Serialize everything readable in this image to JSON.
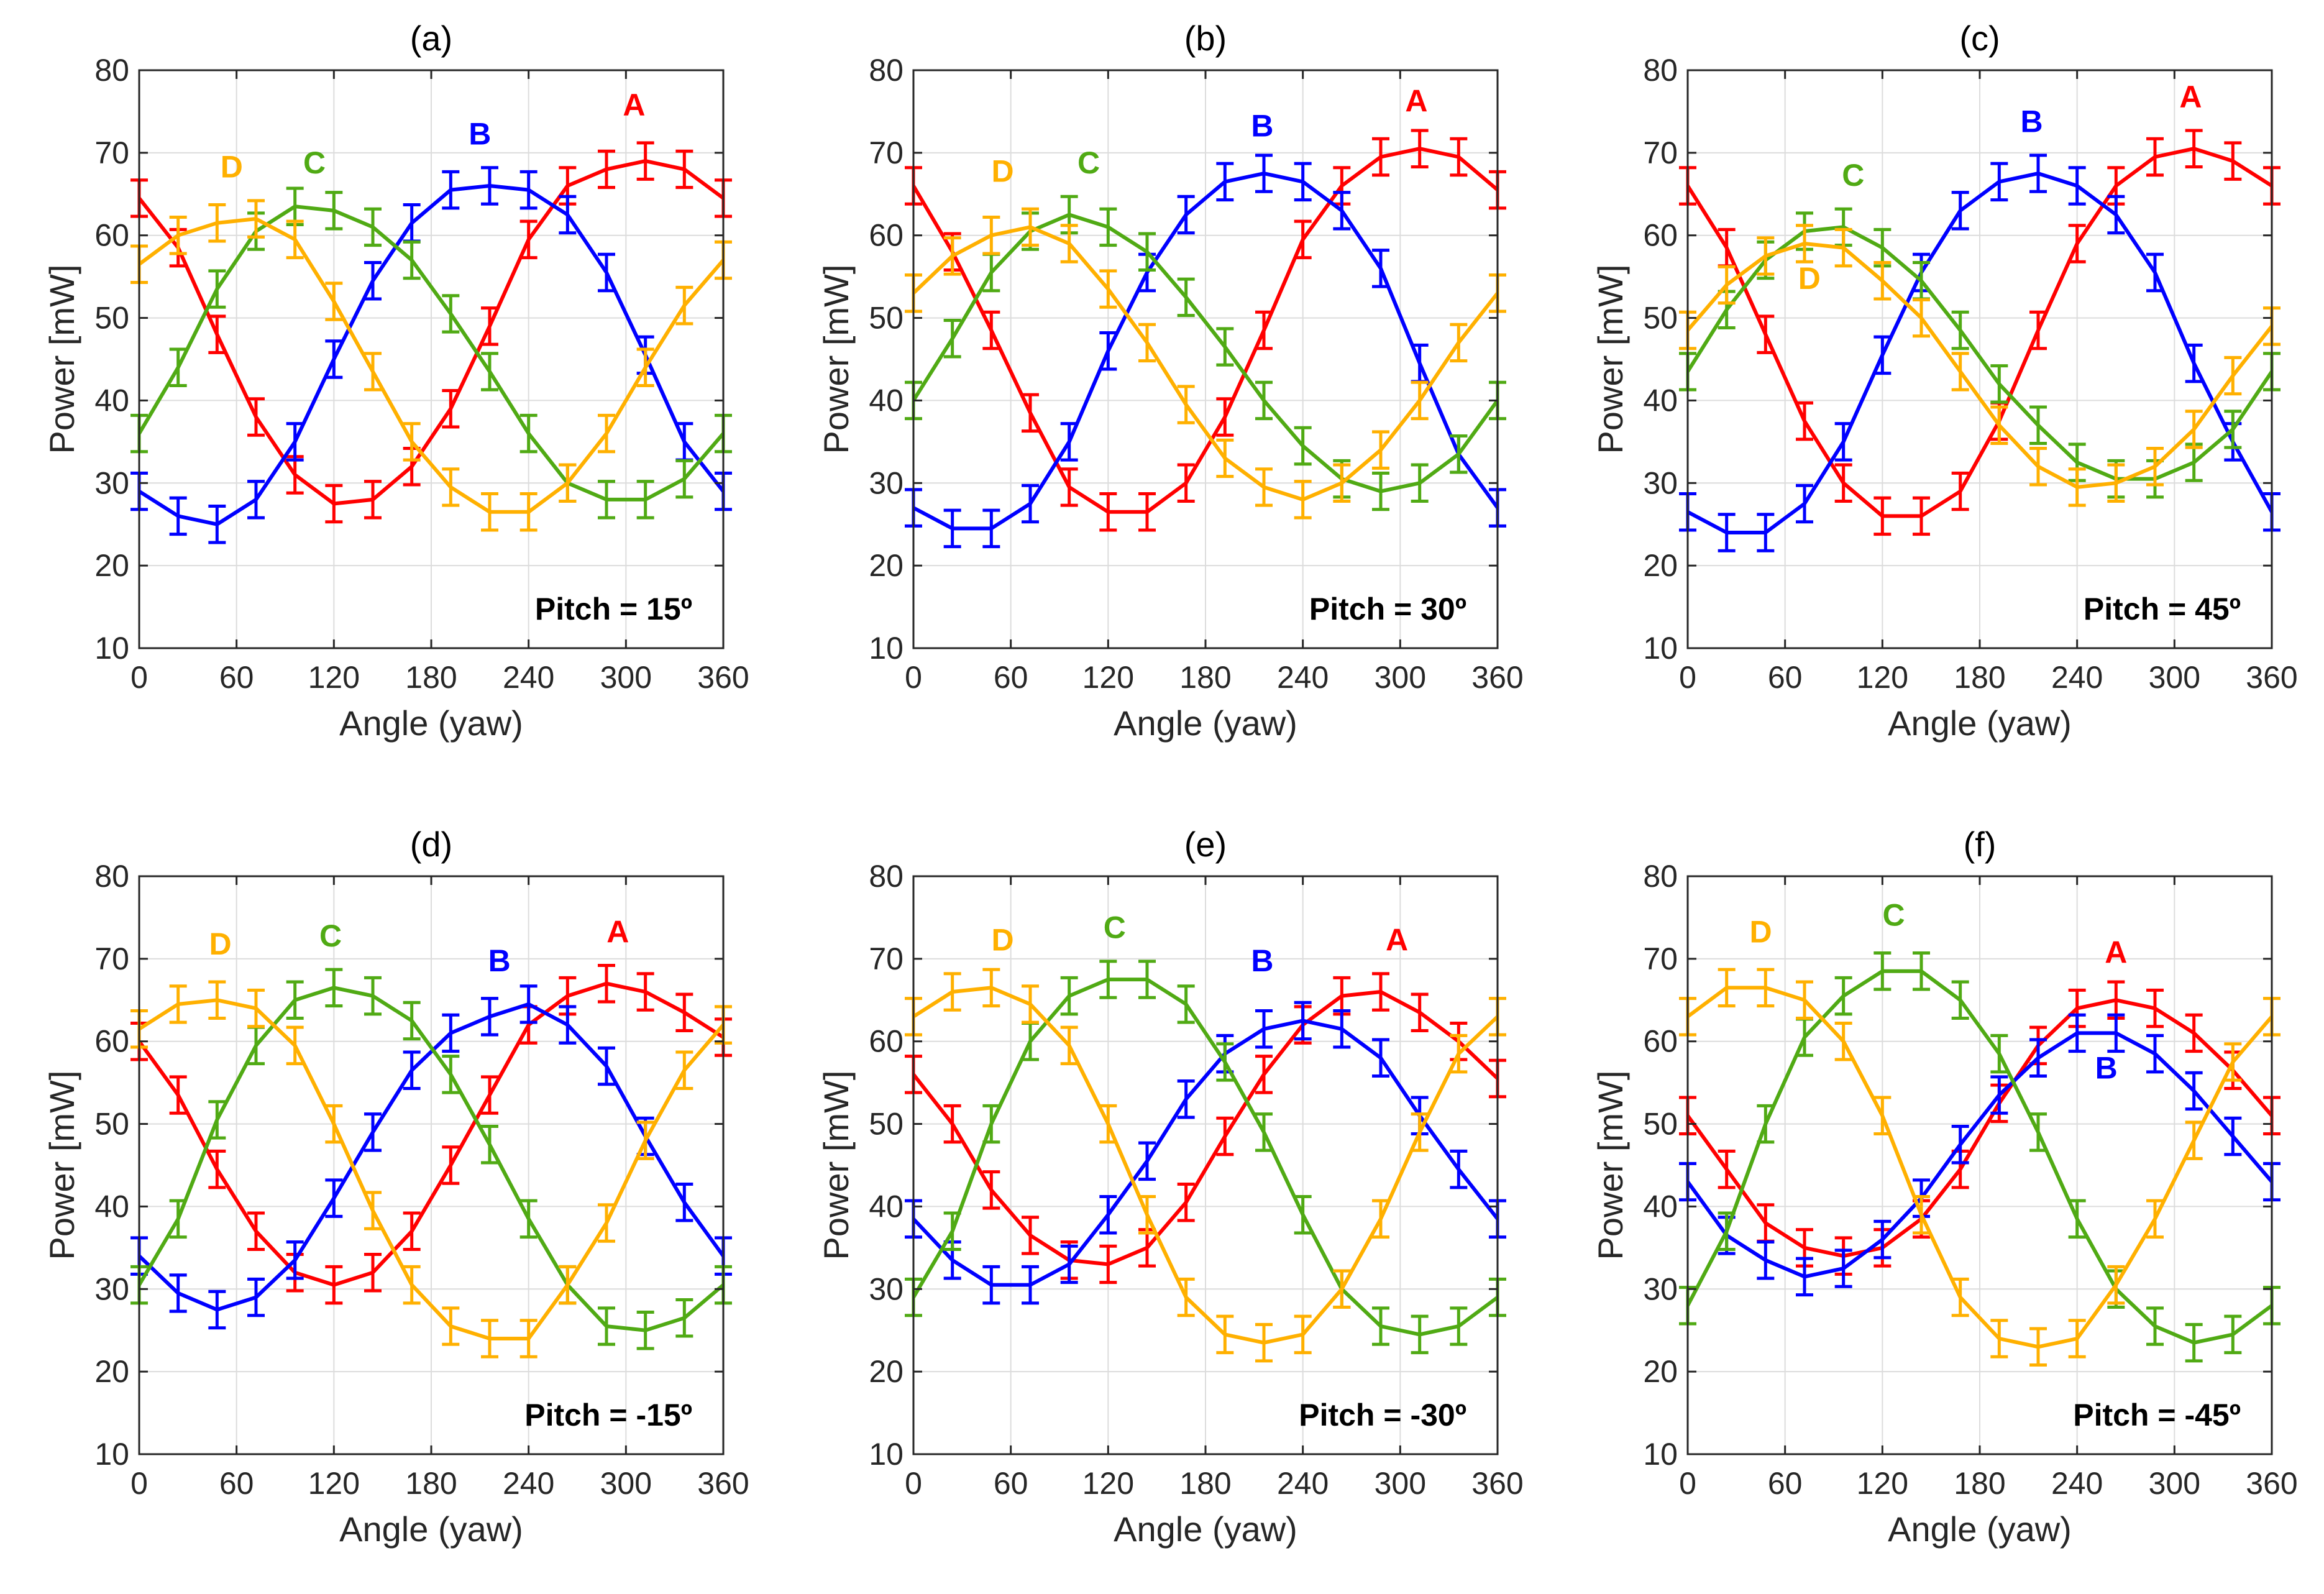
{
  "figure": {
    "background": "#ffffff"
  },
  "chart_data": [
    {
      "type": "line",
      "panel_label": "(a)",
      "annotation": "Pitch = 15º",
      "xlabel": "Angle (yaw)",
      "ylabel": "Power [mW]",
      "xlim": [
        0,
        360
      ],
      "ylim": [
        10,
        80
      ],
      "grid": true,
      "xticks": [
        "0",
        "60",
        "120",
        "180",
        "240",
        "300",
        "360"
      ],
      "yticks": [
        "10",
        "20",
        "30",
        "40",
        "50",
        "60",
        "70",
        "80"
      ],
      "x": [
        0,
        24,
        48,
        72,
        96,
        120,
        144,
        168,
        192,
        216,
        240,
        264,
        288,
        312,
        336,
        360
      ],
      "series": [
        {
          "name": "A",
          "color": "#ff0000",
          "label_at": [
            305,
            74.5
          ],
          "values": [
            64.5,
            58.5,
            48,
            38,
            31,
            27.5,
            28,
            32,
            39,
            49,
            59.5,
            66,
            68,
            69,
            68,
            64.5
          ]
        },
        {
          "name": "B",
          "color": "#0000ff",
          "label_at": [
            210,
            71
          ],
          "values": [
            29,
            26,
            25,
            28,
            35,
            45,
            54.5,
            61.5,
            65.5,
            66,
            65.5,
            62.5,
            55.5,
            45.5,
            35,
            29
          ]
        },
        {
          "name": "C",
          "color": "#50aa14",
          "label_at": [
            108,
            67.5
          ],
          "values": [
            36,
            44,
            53.5,
            60.5,
            63.5,
            63,
            61,
            57,
            50.5,
            43.5,
            36,
            30,
            28,
            28,
            30.5,
            36
          ]
        },
        {
          "name": "D",
          "color": "#ffb000",
          "label_at": [
            57,
            67
          ],
          "values": [
            56.5,
            60,
            61.5,
            62,
            59.5,
            52,
            43.5,
            35,
            29.5,
            26.5,
            26.5,
            30,
            36,
            44,
            51.5,
            57
          ]
        }
      ]
    },
    {
      "type": "line",
      "panel_label": "(b)",
      "annotation": "Pitch = 30º",
      "xlabel": "Angle (yaw)",
      "ylabel": "Power [mW]",
      "xlim": [
        0,
        360
      ],
      "ylim": [
        10,
        80
      ],
      "grid": true,
      "xticks": [
        "0",
        "60",
        "120",
        "180",
        "240",
        "300",
        "360"
      ],
      "yticks": [
        "10",
        "20",
        "30",
        "40",
        "50",
        "60",
        "70",
        "80"
      ],
      "x": [
        0,
        24,
        48,
        72,
        96,
        120,
        144,
        168,
        192,
        216,
        240,
        264,
        288,
        312,
        336,
        360
      ],
      "series": [
        {
          "name": "A",
          "color": "#ff0000",
          "label_at": [
            310,
            75
          ],
          "values": [
            66,
            58,
            48.5,
            38.5,
            29.5,
            26.5,
            26.5,
            30,
            38,
            48.5,
            59.5,
            66,
            69.5,
            70.5,
            69.5,
            65.5
          ]
        },
        {
          "name": "B",
          "color": "#0000ff",
          "label_at": [
            215,
            72
          ],
          "values": [
            27,
            24.5,
            24.5,
            27.5,
            35,
            46,
            55.5,
            62.5,
            66.5,
            67.5,
            66.5,
            63,
            56,
            44.5,
            33.5,
            27
          ]
        },
        {
          "name": "C",
          "color": "#50aa14",
          "label_at": [
            108,
            67.5
          ],
          "values": [
            40,
            47.5,
            55.5,
            60.5,
            62.5,
            61,
            58,
            52.5,
            46.5,
            40,
            34.5,
            30.5,
            29,
            30,
            33.5,
            40
          ]
        },
        {
          "name": "D",
          "color": "#ffb000",
          "label_at": [
            55,
            66.5
          ],
          "values": [
            53,
            57.5,
            60,
            61,
            59,
            53.5,
            47,
            39.5,
            33,
            29.5,
            28,
            30,
            34,
            40,
            47,
            53
          ]
        }
      ]
    },
    {
      "type": "line",
      "panel_label": "(c)",
      "annotation": "Pitch = 45º",
      "xlabel": "Angle (yaw)",
      "ylabel": "Power [mW]",
      "xlim": [
        0,
        360
      ],
      "ylim": [
        10,
        80
      ],
      "grid": true,
      "xticks": [
        "0",
        "60",
        "120",
        "180",
        "240",
        "300",
        "360"
      ],
      "yticks": [
        "10",
        "20",
        "30",
        "40",
        "50",
        "60",
        "70",
        "80"
      ],
      "x": [
        0,
        24,
        48,
        72,
        96,
        120,
        144,
        168,
        192,
        216,
        240,
        264,
        288,
        312,
        336,
        360
      ],
      "series": [
        {
          "name": "A",
          "color": "#ff0000",
          "label_at": [
            310,
            75.5
          ],
          "values": [
            66,
            58.5,
            48,
            37.5,
            30,
            26,
            26,
            29,
            37.5,
            48.5,
            59,
            66,
            69.5,
            70.5,
            69,
            66
          ]
        },
        {
          "name": "B",
          "color": "#0000ff",
          "label_at": [
            212,
            72.5
          ],
          "values": [
            26.5,
            24,
            24,
            27.5,
            35,
            45.5,
            55.5,
            63,
            66.5,
            67.5,
            66,
            62.5,
            55.5,
            44.5,
            35,
            26.5
          ]
        },
        {
          "name": "C",
          "color": "#50aa14",
          "label_at": [
            102,
            66
          ],
          "values": [
            43.5,
            51,
            57,
            60.5,
            61,
            58.5,
            54.5,
            48.5,
            42,
            37,
            32.5,
            30.5,
            30.5,
            32.5,
            36.5,
            43.5
          ]
        },
        {
          "name": "D",
          "color": "#ffb000",
          "label_at": [
            75,
            53.5
          ],
          "values": [
            48.5,
            54,
            57.5,
            59,
            58.5,
            54.5,
            50,
            43.5,
            37,
            32,
            29.5,
            30,
            32,
            36.5,
            43,
            49
          ]
        }
      ]
    },
    {
      "type": "line",
      "panel_label": "(d)",
      "annotation": "Pitch = -15º",
      "xlabel": "Angle (yaw)",
      "ylabel": "Power [mW]",
      "xlim": [
        0,
        360
      ],
      "ylim": [
        10,
        80
      ],
      "grid": true,
      "xticks": [
        "0",
        "60",
        "120",
        "180",
        "240",
        "300",
        "360"
      ],
      "yticks": [
        "10",
        "20",
        "30",
        "40",
        "50",
        "60",
        "70",
        "80"
      ],
      "x": [
        0,
        24,
        48,
        72,
        96,
        120,
        144,
        168,
        192,
        216,
        240,
        264,
        288,
        312,
        336,
        360
      ],
      "series": [
        {
          "name": "A",
          "color": "#ff0000",
          "label_at": [
            295,
            72
          ],
          "values": [
            60,
            53.5,
            44.5,
            37,
            32,
            30.5,
            32,
            37,
            45,
            53.5,
            62,
            65.5,
            67,
            66,
            63.5,
            60.5
          ]
        },
        {
          "name": "B",
          "color": "#0000ff",
          "label_at": [
            222,
            68.5
          ],
          "values": [
            34,
            29.5,
            27.5,
            29,
            33.5,
            41,
            49,
            56.5,
            61,
            63,
            64.5,
            62,
            57,
            48.5,
            40.5,
            34
          ]
        },
        {
          "name": "C",
          "color": "#50aa14",
          "label_at": [
            118,
            71.5
          ],
          "values": [
            30.5,
            38.5,
            50.5,
            59.5,
            65,
            66.5,
            65.5,
            62.5,
            56,
            47.5,
            38.5,
            30.5,
            25.5,
            25,
            26.5,
            30.5
          ]
        },
        {
          "name": "D",
          "color": "#ffb000",
          "label_at": [
            50,
            70.5
          ],
          "values": [
            61.5,
            64.5,
            65,
            64,
            59.5,
            50,
            39.5,
            30.5,
            25.5,
            24,
            24,
            30.5,
            38,
            48,
            56.5,
            62
          ]
        }
      ]
    },
    {
      "type": "line",
      "panel_label": "(e)",
      "annotation": "Pitch = -30º",
      "xlabel": "Angle (yaw)",
      "ylabel": "Power [mW]",
      "xlim": [
        0,
        360
      ],
      "ylim": [
        10,
        80
      ],
      "grid": true,
      "xticks": [
        "0",
        "60",
        "120",
        "180",
        "240",
        "300",
        "360"
      ],
      "yticks": [
        "10",
        "20",
        "30",
        "40",
        "50",
        "60",
        "70",
        "80"
      ],
      "x": [
        0,
        24,
        48,
        72,
        96,
        120,
        144,
        168,
        192,
        216,
        240,
        264,
        288,
        312,
        336,
        360
      ],
      "series": [
        {
          "name": "A",
          "color": "#ff0000",
          "label_at": [
            298,
            71
          ],
          "values": [
            56,
            50,
            42,
            36.5,
            33.5,
            33,
            35,
            40.5,
            48.5,
            56,
            62,
            65.5,
            66,
            63.5,
            60,
            55.5
          ]
        },
        {
          "name": "B",
          "color": "#0000ff",
          "label_at": [
            215,
            68.5
          ],
          "values": [
            38.5,
            33.5,
            30.5,
            30.5,
            33,
            39,
            45.5,
            53,
            58.5,
            61.5,
            62.5,
            61.5,
            58,
            51,
            44.5,
            38.5
          ]
        },
        {
          "name": "C",
          "color": "#50aa14",
          "label_at": [
            124,
            72.5
          ],
          "values": [
            29,
            37,
            50,
            60,
            65.5,
            67.5,
            67.5,
            64.5,
            57.5,
            49,
            39,
            30,
            25.5,
            24.5,
            25.5,
            29
          ]
        },
        {
          "name": "D",
          "color": "#ffb000",
          "label_at": [
            55,
            71
          ],
          "values": [
            63,
            66,
            66.5,
            64.5,
            59.5,
            50,
            39,
            29,
            24.5,
            23.5,
            24.5,
            30,
            38.5,
            49,
            58.5,
            63
          ]
        }
      ]
    },
    {
      "type": "line",
      "panel_label": "(f)",
      "annotation": "Pitch = -45º",
      "xlabel": "Angle (yaw)",
      "ylabel": "Power [mW]",
      "xlim": [
        0,
        360
      ],
      "ylim": [
        10,
        80
      ],
      "grid": true,
      "xticks": [
        "0",
        "60",
        "120",
        "180",
        "240",
        "300",
        "360"
      ],
      "yticks": [
        "10",
        "20",
        "30",
        "40",
        "50",
        "60",
        "70",
        "80"
      ],
      "x": [
        0,
        24,
        48,
        72,
        96,
        120,
        144,
        168,
        192,
        216,
        240,
        264,
        288,
        312,
        336,
        360
      ],
      "series": [
        {
          "name": "A",
          "color": "#ff0000",
          "label_at": [
            264,
            69.5
          ],
          "values": [
            51,
            44.5,
            38,
            35,
            34,
            35,
            38.5,
            44.5,
            52.5,
            59.5,
            64,
            65,
            64,
            61,
            56.5,
            51
          ]
        },
        {
          "name": "B",
          "color": "#0000ff",
          "label_at": [
            258,
            55.5
          ],
          "values": [
            43,
            36.5,
            33.5,
            31.5,
            32.5,
            36,
            41,
            47.5,
            53.5,
            58,
            61,
            61,
            58.5,
            54,
            48.5,
            43
          ]
        },
        {
          "name": "C",
          "color": "#50aa14",
          "label_at": [
            127,
            74
          ],
          "values": [
            28,
            37,
            50,
            60.5,
            65.5,
            68.5,
            68.5,
            65,
            58.5,
            49,
            38.5,
            30,
            25.5,
            23.5,
            24.5,
            28
          ]
        },
        {
          "name": "D",
          "color": "#ffb000",
          "label_at": [
            45,
            72
          ],
          "values": [
            63,
            66.5,
            66.5,
            65,
            60,
            51,
            39,
            29,
            24,
            23,
            24,
            30.5,
            38.5,
            48,
            57.5,
            63
          ]
        }
      ]
    }
  ]
}
